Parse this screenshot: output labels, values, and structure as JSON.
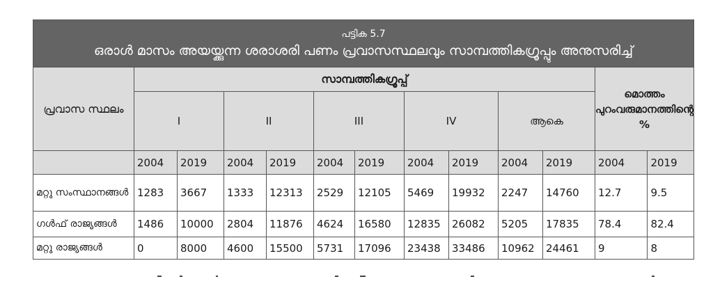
{
  "table_number": "പട്ടിക 5.7",
  "title": "ഒരാൾ മാസം അയയ്ക്കുന്ന ശരാശരി പണം പ്രവാസസ്ഥലവും സാമ്പത്തികഗ്രൂപ്പും അനുസരിച്ച്",
  "headers": {
    "place": "പ്രവാസ സ്ഥലം",
    "economic_group": "സാമ്പത്തികഗ്രൂപ്പ്",
    "groups": [
      "I",
      "II",
      "III",
      "IV",
      "ആകെ"
    ],
    "total_income_pct": "മൊത്തം പുറംവരുമാനത്തിന്റെ %",
    "years": [
      "2004",
      "2019",
      "2004",
      "2019",
      "2004",
      "2019",
      "2004",
      "2019",
      "2004",
      "2019",
      "2004",
      "2019"
    ]
  },
  "rows": [
    {
      "place": "മറ്റു സംസ്ഥാനങ്ങൾ",
      "values": [
        "1283",
        "3667",
        "1333",
        "12313",
        "2529",
        "12105",
        "5469",
        "19932",
        "2247",
        "14760",
        "12.7",
        "9.5"
      ]
    },
    {
      "place": "ഗൾഫ് രാജ്യങ്ങൾ",
      "values": [
        "1486",
        "10000",
        "2804",
        "11876",
        "4624",
        "16580",
        "12835",
        "26082",
        "5205",
        "17835",
        "78.4",
        "82.4"
      ]
    },
    {
      "place": "മറ്റു രാജ്യങ്ങൾ",
      "values": [
        "0",
        "8000",
        "4600",
        "15500",
        "5731",
        "17096",
        "23438",
        "33486",
        "10962",
        "24461",
        "9",
        "8"
      ]
    }
  ]
}
